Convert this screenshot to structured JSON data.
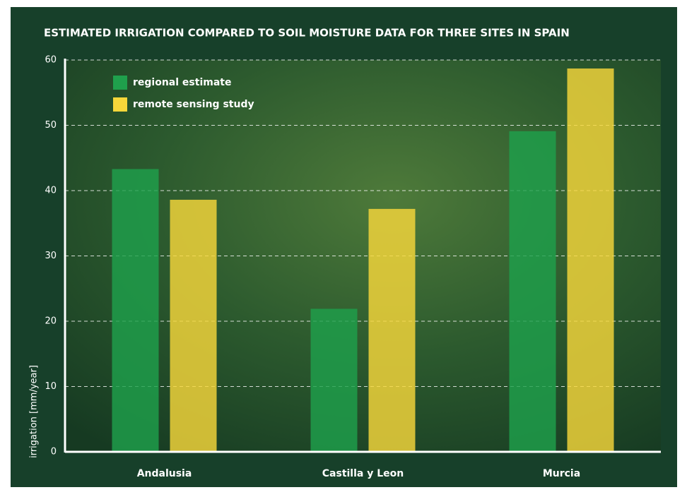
{
  "chart_data": {
    "type": "bar",
    "title": "ESTIMATED IRRIGATION COMPARED TO SOIL MOISTURE DATA FOR THREE SITES IN SPAIN",
    "y_label": "irrigation [mm/year]",
    "categories": [
      "Andalusia",
      "Castilla y Leon",
      "Murcia"
    ],
    "series": [
      {
        "name": "regional estimate",
        "color": "#1fa04c",
        "values": [
          43.3,
          21.9,
          49.1
        ]
      },
      {
        "name": "remote sensing study",
        "color": "#f7d73a",
        "values": [
          38.6,
          37.2,
          58.7
        ]
      }
    ],
    "ylim": [
      0,
      60
    ],
    "yticks": [
      0,
      10,
      20,
      30,
      40,
      50,
      60
    ],
    "grid": true,
    "legend": "upper left"
  }
}
